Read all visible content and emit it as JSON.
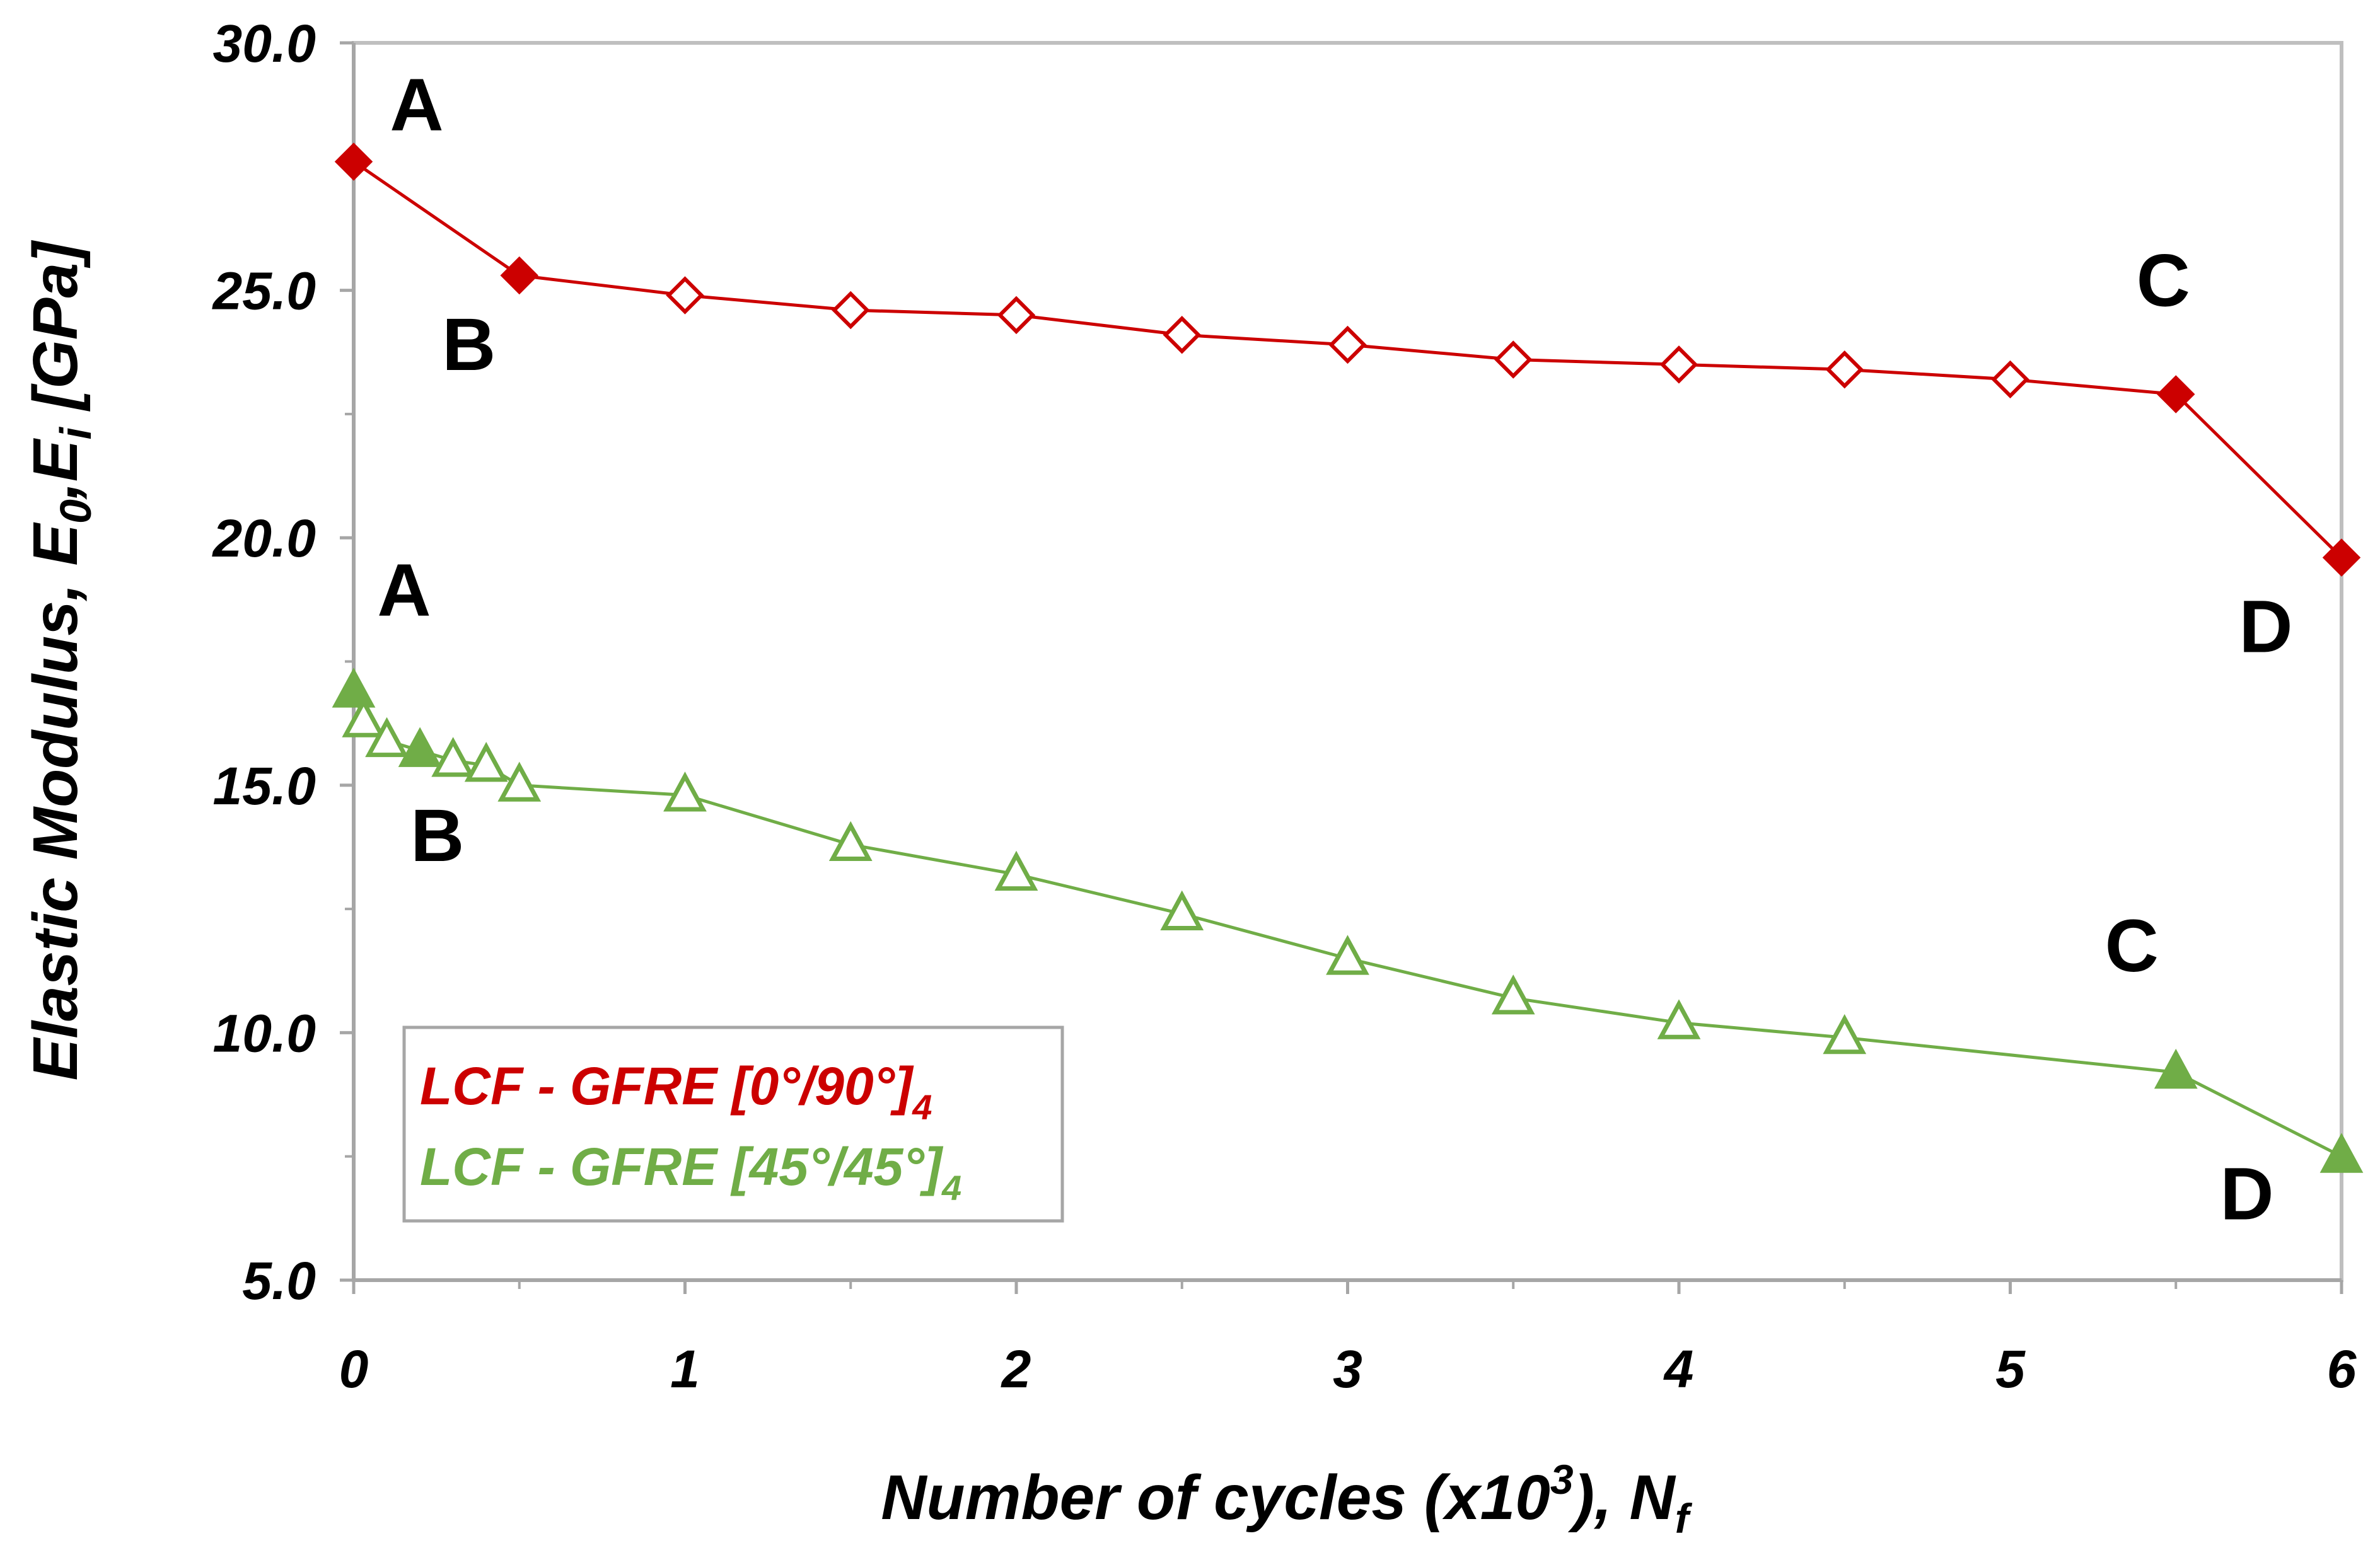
{
  "chart_data": {
    "type": "line",
    "xlabel": {
      "main": "Number of cycles (x10",
      "sup": "3",
      "tail": "), N",
      "sub": "f"
    },
    "ylabel": {
      "p1": "Elastic Modulus,  E",
      "s1": "0",
      "p2": ",E",
      "s2": "i",
      "p3": " [GPa]"
    },
    "xlim": [
      0,
      6
    ],
    "ylim": [
      5,
      30
    ],
    "x_ticks": [
      "0",
      "1",
      "2",
      "3",
      "4",
      "5",
      "6"
    ],
    "y_ticks": [
      "5.0",
      "10.0",
      "15.0",
      "20.0",
      "25.0",
      "30.0"
    ],
    "grid": false,
    "legend_position": "bottom-left",
    "series": [
      {
        "name": "LCF - GFRE [0°/90°]",
        "name_sub": "4",
        "color": "#cc0000",
        "marker": "diamond",
        "points": [
          {
            "x": 0.0,
            "y": 27.6,
            "filled": true
          },
          {
            "x": 0.5,
            "y": 25.3,
            "filled": true
          },
          {
            "x": 1.0,
            "y": 24.9,
            "filled": false
          },
          {
            "x": 1.5,
            "y": 24.6,
            "filled": false
          },
          {
            "x": 2.0,
            "y": 24.5,
            "filled": false
          },
          {
            "x": 2.5,
            "y": 24.1,
            "filled": false
          },
          {
            "x": 3.0,
            "y": 23.9,
            "filled": false
          },
          {
            "x": 3.5,
            "y": 23.6,
            "filled": false
          },
          {
            "x": 4.0,
            "y": 23.5,
            "filled": false
          },
          {
            "x": 4.5,
            "y": 23.4,
            "filled": false
          },
          {
            "x": 5.0,
            "y": 23.2,
            "filled": false
          },
          {
            "x": 5.5,
            "y": 22.9,
            "filled": true
          },
          {
            "x": 6.0,
            "y": 19.6,
            "filled": true
          }
        ]
      },
      {
        "name": "LCF - GFRE [45°/45°]",
        "name_sub": "4",
        "color": "#70ad47",
        "marker": "triangle",
        "points": [
          {
            "x": 0.0,
            "y": 16.9,
            "filled": true
          },
          {
            "x": 0.03,
            "y": 16.3,
            "filled": false
          },
          {
            "x": 0.1,
            "y": 15.9,
            "filled": false
          },
          {
            "x": 0.2,
            "y": 15.7,
            "filled": true
          },
          {
            "x": 0.3,
            "y": 15.5,
            "filled": false
          },
          {
            "x": 0.4,
            "y": 15.4,
            "filled": false
          },
          {
            "x": 0.5,
            "y": 15.0,
            "filled": false
          },
          {
            "x": 1.0,
            "y": 14.8,
            "filled": false
          },
          {
            "x": 1.5,
            "y": 13.8,
            "filled": false
          },
          {
            "x": 2.0,
            "y": 13.2,
            "filled": false
          },
          {
            "x": 2.5,
            "y": 12.4,
            "filled": false
          },
          {
            "x": 3.0,
            "y": 11.5,
            "filled": false
          },
          {
            "x": 3.5,
            "y": 10.7,
            "filled": false
          },
          {
            "x": 4.0,
            "y": 10.2,
            "filled": false
          },
          {
            "x": 4.5,
            "y": 9.9,
            "filled": false
          },
          {
            "x": 5.5,
            "y": 9.2,
            "filled": true
          },
          {
            "x": 6.0,
            "y": 7.5,
            "filled": true
          }
        ]
      }
    ],
    "annotations": [
      {
        "text": "A",
        "near_series": 0,
        "near_x": 0.0
      },
      {
        "text": "B",
        "near_series": 0,
        "near_x": 0.5
      },
      {
        "text": "C",
        "near_series": 0,
        "near_x": 5.5
      },
      {
        "text": "D",
        "near_series": 0,
        "near_x": 6.0
      },
      {
        "text": "A",
        "near_series": 1,
        "near_x": 0.0
      },
      {
        "text": "B",
        "near_series": 1,
        "near_x": 0.5
      },
      {
        "text": "C",
        "near_series": 1,
        "near_x": 5.5
      },
      {
        "text": "D",
        "near_series": 1,
        "near_x": 6.0
      }
    ]
  }
}
